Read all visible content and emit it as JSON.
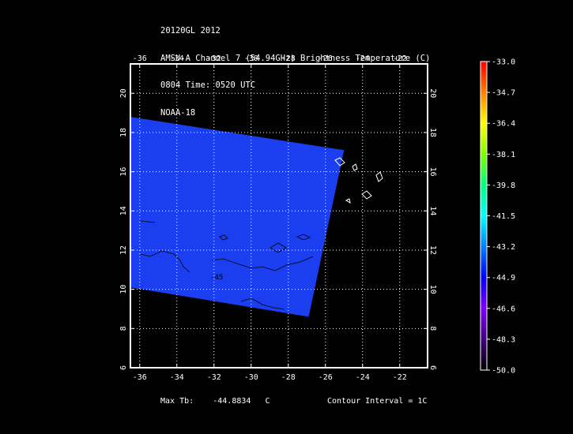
{
  "title_lines": [
    "20120GL 2012",
    "AMSU-A Channel 7 (54.94GHz) Brightness Temperature (C)",
    "0804 Time: 0520 UTC",
    "NOAA-18"
  ],
  "footer": {
    "max_tb_label": "Max Tb:",
    "max_tb_value": "-44.8834",
    "max_tb_unit": "C",
    "contour_interval": "Contour Interval = 1C"
  },
  "colors": {
    "background": "#000000",
    "field": "#1b3ff0",
    "frame": "#ffffff"
  },
  "chart_data": {
    "type": "heatmap",
    "xlim": [
      -36.5,
      -20.5
    ],
    "ylim": [
      6,
      21.5
    ],
    "x_ticks": [
      -36,
      -34,
      -32,
      -30,
      -28,
      -26,
      -24,
      -22
    ],
    "y_ticks": [
      6,
      8,
      10,
      12,
      14,
      16,
      18,
      20
    ],
    "x_tick_labels": [
      "-36",
      "-34",
      "-32",
      "-30",
      "-28",
      "-26",
      "-24",
      "-22"
    ],
    "y_tick_labels": [
      "6",
      "8",
      "10",
      "12",
      "14",
      "16",
      "18",
      "20"
    ],
    "grid": true,
    "swath_polygon": [
      [
        -36.5,
        18.8
      ],
      [
        -25.0,
        17.1
      ],
      [
        -26.9,
        8.6
      ],
      [
        -36.5,
        10.1
      ]
    ],
    "contour_label": "-45",
    "contour_label_at": [
      -32.2,
      10.5
    ],
    "colorbar": {
      "min": -50.0,
      "max": -33.0,
      "labels": [
        "-33.0",
        "-34.7",
        "-36.4",
        "-38.1",
        "-39.8",
        "-41.5",
        "-43.2",
        "-44.9",
        "-46.6",
        "-48.3",
        "-50.0"
      ],
      "stops": [
        "#ff0000",
        "#ff8000",
        "#ffff00",
        "#80ff00",
        "#00ff80",
        "#00ffff",
        "#0080ff",
        "#0000ff",
        "#8000ff",
        "#400080",
        "#000000"
      ]
    }
  }
}
